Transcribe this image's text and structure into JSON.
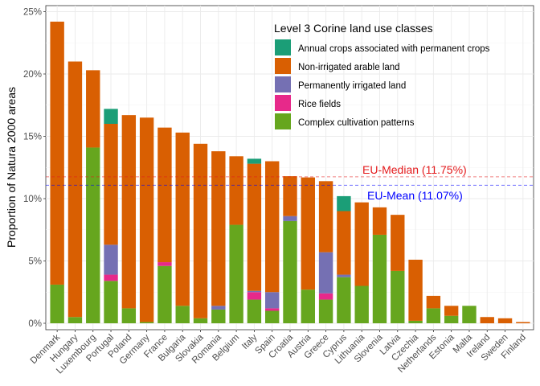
{
  "chart_data": {
    "type": "bar",
    "stacked": true,
    "ylabel": "Proportion of Natura 2000 areas",
    "xlabel": "",
    "ylim": [
      0,
      25.5
    ],
    "yticks": [
      0,
      5,
      10,
      15,
      20,
      25
    ],
    "ytick_labels": [
      "0%",
      "5%",
      "10%",
      "15%",
      "20%",
      "25%"
    ],
    "grid": true,
    "legend": {
      "title": "Level 3 Corine land use classes",
      "placement": "top-right"
    },
    "categories": [
      "Denmark",
      "Hungary",
      "Luxembourg",
      "Portugal",
      "Poland",
      "Germany",
      "France",
      "Bulgaria",
      "Slovakia",
      "Romania",
      "Belgium",
      "Italy",
      "Spain",
      "Croatia",
      "Austria",
      "Greece",
      "Cyprus",
      "Lithuania",
      "Slovenia",
      "Latvia",
      "Czechia",
      "Netherlands",
      "Estonia",
      "Malta",
      "Ireland",
      "Sweden",
      "Finland"
    ],
    "series": [
      {
        "name": "Complex cultivation patterns",
        "color": "#66A61E",
        "values": [
          3.1,
          0.5,
          14.1,
          3.4,
          1.2,
          0.1,
          4.6,
          1.4,
          0.4,
          1.1,
          7.9,
          1.9,
          1.0,
          8.2,
          2.7,
          1.9,
          3.7,
          3.0,
          7.1,
          4.2,
          0.2,
          1.2,
          0.6,
          1.4,
          0.0,
          0.0,
          0.0
        ]
      },
      {
        "name": "Rice fields",
        "color": "#E7298A",
        "values": [
          0,
          0,
          0,
          0.5,
          0,
          0,
          0.3,
          0,
          0,
          0,
          0,
          0.6,
          0.2,
          0,
          0,
          0.5,
          0,
          0,
          0,
          0,
          0,
          0,
          0,
          0,
          0,
          0,
          0
        ]
      },
      {
        "name": "Permanently irrigated land",
        "color": "#7570B3",
        "values": [
          0,
          0,
          0,
          2.4,
          0,
          0,
          0,
          0,
          0,
          0.3,
          0,
          0.1,
          1.3,
          0.4,
          0,
          3.3,
          0.2,
          0,
          0,
          0,
          0,
          0,
          0,
          0,
          0,
          0,
          0
        ]
      },
      {
        "name": "Non-irrigated arable land",
        "color": "#D95F02",
        "values": [
          21.1,
          20.5,
          6.2,
          9.7,
          15.5,
          16.4,
          10.8,
          13.9,
          14.0,
          12.4,
          5.5,
          10.2,
          10.5,
          3.2,
          9.0,
          5.7,
          5.1,
          6.7,
          2.2,
          4.5,
          4.9,
          1.0,
          0.8,
          0.0,
          0.5,
          0.4,
          0.1
        ]
      },
      {
        "name": "Annual crops associated with permanent crops",
        "color": "#1B9E77",
        "values": [
          0,
          0,
          0,
          1.2,
          0,
          0,
          0,
          0,
          0,
          0,
          0,
          0.4,
          0,
          0,
          0,
          0,
          1.2,
          0,
          0,
          0,
          0,
          0,
          0,
          0,
          0,
          0,
          0
        ]
      }
    ],
    "legend_order": [
      "Annual crops associated with permanent crops",
      "Non-irrigated arable land",
      "Permanently irrigated land",
      "Rice fields",
      "Complex cultivation patterns"
    ],
    "reference_lines": [
      {
        "label": "EU-Median (11.75%)",
        "value": 11.75,
        "color": "#E41A1C"
      },
      {
        "label": "EU-Mean (11.07%)",
        "value": 11.07,
        "color": "#0000FF"
      }
    ]
  }
}
